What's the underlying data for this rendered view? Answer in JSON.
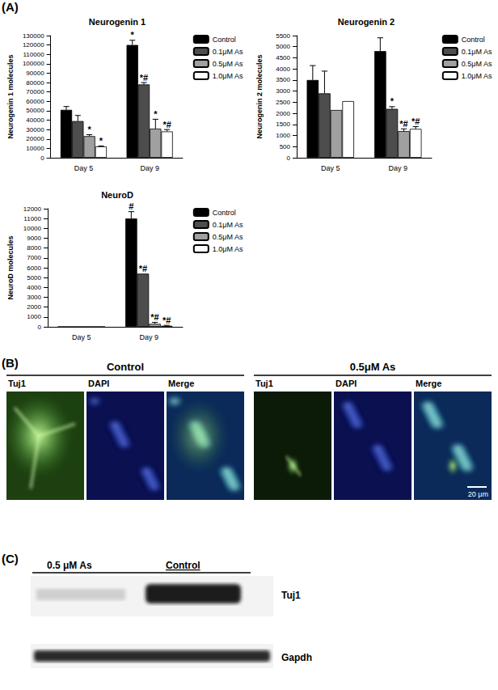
{
  "panel_labels": [
    "(A)",
    "(B)",
    "(C)"
  ],
  "chart_data": [
    {
      "type": "bar",
      "title": "Neurogenin 1",
      "y_label": "Neurogenin 1 molecules",
      "categories": [
        "Day 5",
        "Day 9"
      ],
      "series": [
        {
          "name": "Control",
          "color": "#000000",
          "values": [
            51000,
            120000
          ],
          "errors": [
            3500,
            5000
          ],
          "annotations": [
            null,
            "*"
          ]
        },
        {
          "name": "0.1μM As",
          "color": "#4d4d4d",
          "values": [
            39000,
            78000
          ],
          "errors": [
            6000,
            2000
          ],
          "annotations": [
            null,
            "*#"
          ]
        },
        {
          "name": "0.5μM As",
          "color": "#a0a0a0",
          "values": [
            23000,
            31000
          ],
          "errors": [
            1500,
            10000
          ],
          "annotations": [
            "*",
            "*"
          ]
        },
        {
          "name": "1.0μM As",
          "color": "#ffffff",
          "values": [
            12000,
            28000
          ],
          "errors": [
            500,
            2000
          ],
          "annotations": [
            "*",
            "*#"
          ]
        }
      ],
      "ylim": [
        0,
        130000
      ],
      "yticks": [
        0,
        10000,
        20000,
        30000,
        40000,
        50000,
        60000,
        70000,
        80000,
        90000,
        100000,
        110000,
        120000,
        130000
      ],
      "grid": false,
      "legend": "upper right"
    },
    {
      "type": "bar",
      "title": "Neurogenin 2",
      "y_label": "Neurogenin 2 molecules",
      "categories": [
        "Day 5",
        "Day 9"
      ],
      "series": [
        {
          "name": "Control",
          "color": "#000000",
          "values": [
            3500,
            4800
          ],
          "errors": [
            650,
            600
          ],
          "annotations": [
            null,
            null
          ]
        },
        {
          "name": "0.1μM As",
          "color": "#4d4d4d",
          "values": [
            2900,
            2200
          ],
          "errors": [
            1000,
            100
          ],
          "annotations": [
            null,
            "*"
          ]
        },
        {
          "name": "0.5μM As",
          "color": "#a0a0a0",
          "values": [
            2150,
            1200
          ],
          "errors": [
            0,
            100
          ],
          "annotations": [
            null,
            "*#"
          ]
        },
        {
          "name": "1.0μM As",
          "color": "#ffffff",
          "values": [
            2550,
            1300
          ],
          "errors": [
            0,
            100
          ],
          "annotations": [
            null,
            "*#"
          ]
        }
      ],
      "ylim": [
        0,
        5500
      ],
      "yticks": [
        0,
        500,
        1000,
        1500,
        2000,
        2500,
        3000,
        3500,
        4000,
        4500,
        5000,
        5500
      ],
      "grid": false,
      "legend": "upper right"
    },
    {
      "type": "bar",
      "title": "NeuroD",
      "y_label": "NeuroD molecules",
      "categories": [
        "Day 5",
        "Day 9"
      ],
      "series": [
        {
          "name": "Control",
          "color": "#000000",
          "values": [
            0,
            11000
          ],
          "errors": [
            0,
            700
          ],
          "annotations": [
            null,
            "#"
          ]
        },
        {
          "name": "0.1μM As",
          "color": "#4d4d4d",
          "values": [
            0,
            5400
          ],
          "errors": [
            0,
            0
          ],
          "annotations": [
            null,
            "*#"
          ]
        },
        {
          "name": "0.5μM As",
          "color": "#a0a0a0",
          "values": [
            0,
            300
          ],
          "errors": [
            0,
            150
          ],
          "annotations": [
            null,
            "*#"
          ]
        },
        {
          "name": "1.0μM As",
          "color": "#ffffff",
          "values": [
            0,
            100
          ],
          "errors": [
            0,
            50
          ],
          "annotations": [
            null,
            "*#"
          ]
        }
      ],
      "ylim": [
        0,
        12000
      ],
      "yticks": [
        0,
        1000,
        2000,
        3000,
        4000,
        5000,
        6000,
        7000,
        8000,
        9000,
        10000,
        11000,
        12000
      ],
      "grid": false,
      "legend": "upper right"
    }
  ],
  "panel_b": {
    "groups": [
      {
        "title": "Control",
        "channels": [
          "Tuj1",
          "DAPI",
          "Merge"
        ]
      },
      {
        "title": "0.5μM As",
        "channels": [
          "Tuj1",
          "DAPI",
          "Merge"
        ]
      }
    ],
    "scale_bar": "20 μm"
  },
  "panel_c": {
    "lanes": [
      "0.5 μM As",
      "Control"
    ],
    "bands": [
      "Tuj1",
      "Gapdh"
    ]
  }
}
